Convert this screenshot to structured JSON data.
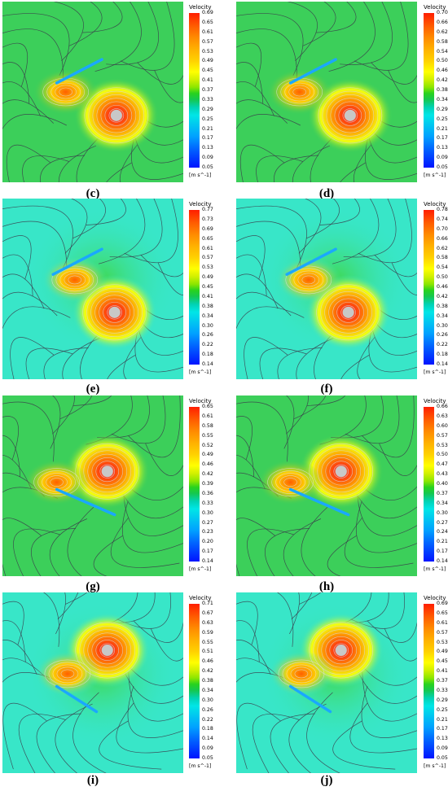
{
  "panels": [
    {
      "label": "(c)",
      "title": "Velocity",
      "unit": "[m s^-1]",
      "ticks": [
        "0.69",
        "0.65",
        "0.61",
        "0.57",
        "0.53",
        "0.49",
        "0.45",
        "0.41",
        "0.37",
        "0.33",
        "0.29",
        "0.25",
        "0.21",
        "0.17",
        "0.13",
        "0.09",
        "0.05"
      ]
    },
    {
      "label": "(d)",
      "title": "Velocity",
      "unit": "[m s^-1]",
      "ticks": [
        "0.70",
        "0.66",
        "0.62",
        "0.58",
        "0.54",
        "0.50",
        "0.46",
        "0.42",
        "0.38",
        "0.34",
        "0.29",
        "0.25",
        "0.21",
        "0.17",
        "0.13",
        "0.09",
        "0.05"
      ]
    },
    {
      "label": "(e)",
      "title": "Velocity",
      "unit": "[m s^-1]",
      "ticks": [
        "0.77",
        "0.73",
        "0.69",
        "0.65",
        "0.61",
        "0.57",
        "0.53",
        "0.49",
        "0.45",
        "0.41",
        "0.38",
        "0.34",
        "0.30",
        "0.26",
        "0.22",
        "0.18",
        "0.14"
      ]
    },
    {
      "label": "(f)",
      "title": "Velocity",
      "unit": "[m s^-1]",
      "ticks": [
        "0.78",
        "0.74",
        "0.70",
        "0.66",
        "0.62",
        "0.58",
        "0.54",
        "0.50",
        "0.46",
        "0.42",
        "0.38",
        "0.34",
        "0.30",
        "0.26",
        "0.22",
        "0.18",
        "0.14"
      ]
    },
    {
      "label": "(g)",
      "title": "Velocity",
      "unit": "[m s^-1]",
      "ticks": [
        "0.65",
        "0.61",
        "0.58",
        "0.55",
        "0.52",
        "0.49",
        "0.46",
        "0.42",
        "0.39",
        "0.36",
        "0.33",
        "0.30",
        "0.27",
        "0.23",
        "0.20",
        "0.17",
        "0.14"
      ]
    },
    {
      "label": "(h)",
      "title": "Velocity",
      "unit": "[m s^-1]",
      "ticks": [
        "0.66",
        "0.63",
        "0.60",
        "0.57",
        "0.53",
        "0.50",
        "0.47",
        "0.43",
        "0.40",
        "0.37",
        "0.34",
        "0.30",
        "0.27",
        "0.24",
        "0.21",
        "0.17",
        "0.14"
      ]
    },
    {
      "label": "(i)",
      "title": "Velocity",
      "unit": "[m s^-1]",
      "ticks": [
        "0.71",
        "0.67",
        "0.63",
        "0.59",
        "0.55",
        "0.51",
        "0.46",
        "0.42",
        "0.38",
        "0.34",
        "0.30",
        "0.26",
        "0.22",
        "0.18",
        "0.14",
        "0.09",
        "0.05"
      ]
    },
    {
      "label": "(j)",
      "title": "Velocity",
      "unit": "[m s^-1]",
      "ticks": [
        "0.69",
        "0.65",
        "0.61",
        "0.57",
        "0.53",
        "0.49",
        "0.45",
        "0.41",
        "0.37",
        "0.33",
        "0.29",
        "0.25",
        "0.21",
        "0.17",
        "0.13",
        "0.09",
        "0.05"
      ]
    }
  ],
  "colors": {
    "background_green": "#3ccf5a",
    "background_cyan": "#38e6c8",
    "streamline": "#3a3a4a",
    "vortex_core": "#c8c8c8",
    "plate": "#1aa8ff"
  }
}
